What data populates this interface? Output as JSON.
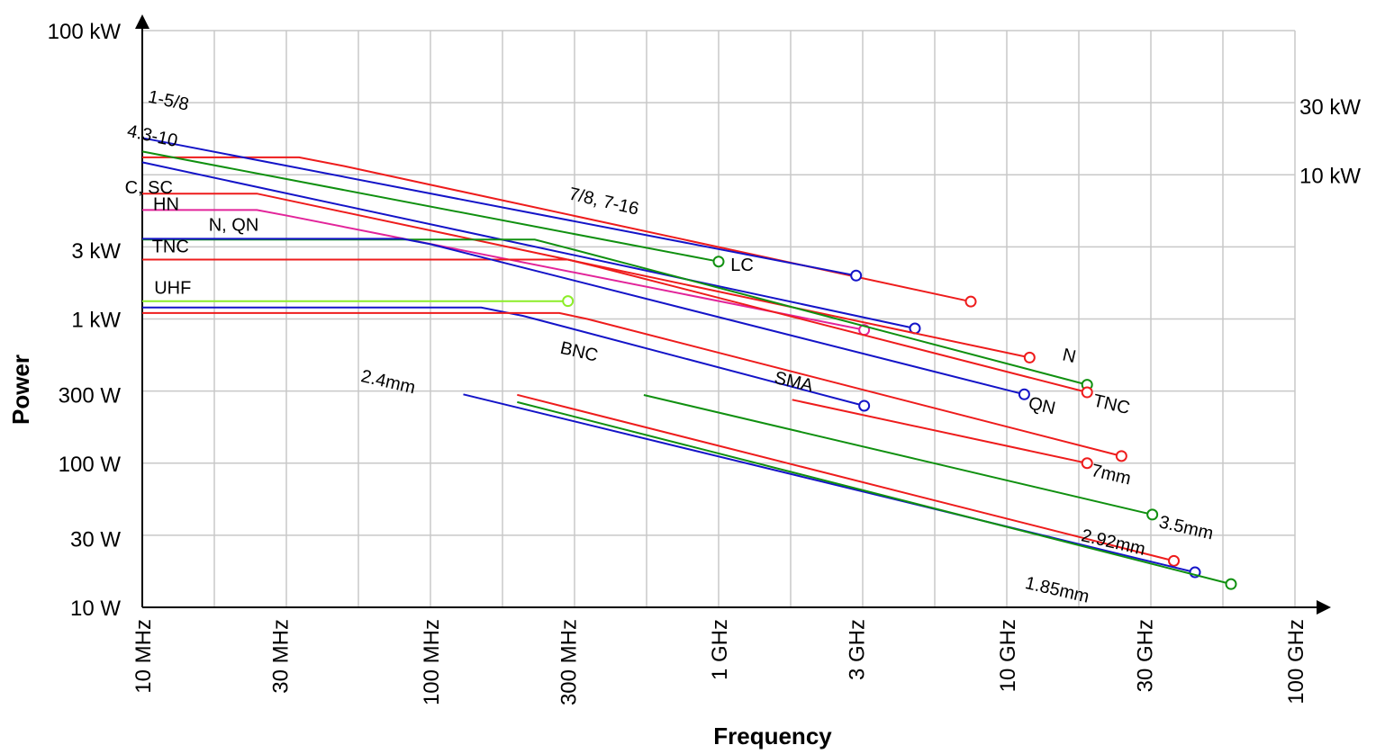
{
  "chart_data": {
    "type": "line",
    "xlabel": "Frequency",
    "ylabel": "Power",
    "x_scale": "log",
    "y_scale": "log",
    "xlim_hz": [
      10000000,
      100000000000
    ],
    "ylim_w": [
      10,
      100000
    ],
    "x_ticks": [
      {
        "value": 10000000,
        "label": "10 MHz"
      },
      {
        "value": 30000000,
        "label": "30 MHz"
      },
      {
        "value": 100000000,
        "label": "100 MHz"
      },
      {
        "value": 300000000,
        "label": "300 MHz"
      },
      {
        "value": 1000000000,
        "label": "1 GHz"
      },
      {
        "value": 3000000000,
        "label": "3 GHz"
      },
      {
        "value": 10000000000,
        "label": "10 GHz"
      },
      {
        "value": 30000000000,
        "label": "30 GHz"
      },
      {
        "value": 100000000000,
        "label": "100 GHz"
      }
    ],
    "y_ticks_left": [
      {
        "value": 100000,
        "label": "100 kW"
      },
      {
        "value": 3000,
        "label": "3 kW"
      },
      {
        "value": 1000,
        "label": "1 kW"
      },
      {
        "value": 300,
        "label": "300 W"
      },
      {
        "value": 100,
        "label": "100 W"
      },
      {
        "value": 30,
        "label": "30 W"
      },
      {
        "value": 10,
        "label": "10 W"
      }
    ],
    "y_ticks_right": [
      {
        "value": 30000,
        "label": "30 kW"
      },
      {
        "value": 10000,
        "label": "10 kW"
      }
    ],
    "grid": true,
    "colors": {
      "red": "#ee1c1c",
      "blue": "#1414c8",
      "green": "#109010",
      "pink": "#e2249a",
      "lime": "#8ced28",
      "grid": "#c8c8c8"
    },
    "series": [
      {
        "name": "7/8, 7-16",
        "color": "red",
        "marker_end": true,
        "points": [
          [
            10000000,
            13200
          ],
          [
            35000000,
            13200
          ],
          [
            50000000,
            11500
          ],
          [
            7500000000,
            1320
          ]
        ]
      },
      {
        "name": "1-5/8",
        "color": "blue",
        "marker_end": true,
        "points": [
          [
            10000000,
            18000
          ],
          [
            3000000000,
            2000
          ]
        ]
      },
      {
        "name": "LC",
        "color": "green",
        "marker_end": true,
        "points": [
          [
            10000000,
            14500
          ],
          [
            1000000000,
            2500
          ]
        ]
      },
      {
        "name": "4.3-10",
        "color": "blue",
        "marker_end": true,
        "points": [
          [
            10000000,
            12200
          ],
          [
            4800000000,
            860
          ]
        ]
      },
      {
        "name": "C, SC",
        "color": "red",
        "marker_end": true,
        "points": [
          [
            10000000,
            7400
          ],
          [
            25000000,
            7400
          ],
          [
            12000000000,
            540
          ]
        ]
      },
      {
        "name": "HN",
        "color": "pink",
        "marker_end": true,
        "points": [
          [
            10000000,
            5700
          ],
          [
            25000000,
            5700
          ],
          [
            32000000,
            5200
          ],
          [
            3200000000,
            840
          ]
        ]
      },
      {
        "name": "N",
        "color": "green",
        "marker_end": true,
        "points": [
          [
            10000000,
            3550
          ],
          [
            230000000,
            3550
          ],
          [
            300000000,
            3100
          ],
          [
            19000000000,
            350
          ]
        ]
      },
      {
        "name": "TNC",
        "color": "red",
        "marker_end": true,
        "points": [
          [
            10000000,
            2580
          ],
          [
            300000000,
            2580
          ],
          [
            380000000,
            2300
          ],
          [
            19000000000,
            310
          ]
        ]
      },
      {
        "name": "N, QN",
        "color": "blue",
        "marker_end": true,
        "points": [
          [
            10000000,
            3600
          ],
          [
            80000000,
            3600
          ],
          [
            100000000,
            3300
          ],
          [
            11500000000,
            300
          ]
        ]
      },
      {
        "name": "UHF",
        "color": "lime",
        "marker_end": true,
        "points": [
          [
            10000000,
            1330
          ],
          [
            300000000,
            1330
          ]
        ]
      },
      {
        "name": "BNC",
        "color": "blue",
        "marker_end": true,
        "points": [
          [
            10000000,
            1200
          ],
          [
            150000000,
            1200
          ],
          [
            210000000,
            1050
          ],
          [
            3200000000,
            250
          ]
        ]
      },
      {
        "name": "SMA",
        "color": "red",
        "marker_end": true,
        "points": [
          [
            10000000,
            1100
          ],
          [
            280000000,
            1100
          ],
          [
            350000000,
            1000
          ],
          [
            25000000000,
            112
          ]
        ]
      },
      {
        "name": "7mm",
        "color": "red",
        "marker_end": true,
        "points": [
          [
            1800000000,
            275
          ],
          [
            19000000000,
            100
          ]
        ]
      },
      {
        "name": "3.5mm",
        "color": "green",
        "marker_end": true,
        "points": [
          [
            550000000,
            297
          ],
          [
            32000000000,
            44
          ]
        ]
      },
      {
        "name": "2.92mm",
        "color": "red",
        "marker_end": true,
        "points": [
          [
            200000000,
            298
          ],
          [
            38000000000,
            21
          ]
        ]
      },
      {
        "name": "2.4mm",
        "color": "blue",
        "marker_end": true,
        "points": [
          [
            130000000,
            300
          ],
          [
            45000000000,
            17.5
          ]
        ]
      },
      {
        "name": "1.85mm",
        "color": "green",
        "marker_end": true,
        "points": [
          [
            200000000,
            265
          ],
          [
            60000000000,
            14.5
          ]
        ]
      }
    ],
    "annotations": [
      {
        "text": "1-5/8",
        "x": 10400000,
        "y": 32000,
        "rotate": 12
      },
      {
        "text": "4.3-10",
        "x": 8800000,
        "y": 18500,
        "rotate": 12
      },
      {
        "text": "C, SC",
        "x": 8700000,
        "y": 7400,
        "rotate": 0
      },
      {
        "text": "HN",
        "x": 10900000,
        "y": 5700,
        "rotate": 0
      },
      {
        "text": "N, QN",
        "x": 17000000,
        "y": 4100,
        "rotate": 0
      },
      {
        "text": "TNC",
        "x": 10800000,
        "y": 2900,
        "rotate": 0
      },
      {
        "text": "UHF",
        "x": 11000000,
        "y": 1500,
        "rotate": 0
      },
      {
        "text": "7/8, 7-16",
        "x": 300000000,
        "y": 6800,
        "rotate": 13
      },
      {
        "text": "LC",
        "x": 1100000000,
        "y": 2150,
        "rotate": 0
      },
      {
        "text": "BNC",
        "x": 280000000,
        "y": 580,
        "rotate": 13
      },
      {
        "text": "SMA",
        "x": 1550000000,
        "y": 360,
        "rotate": 13
      },
      {
        "text": "2.4mm",
        "x": 57000000,
        "y": 370,
        "rotate": 13
      },
      {
        "text": "N",
        "x": 15500000000,
        "y": 520,
        "rotate": 13
      },
      {
        "text": "TNC",
        "x": 19800000000,
        "y": 250,
        "rotate": 13
      },
      {
        "text": "QN",
        "x": 11800000000,
        "y": 240,
        "rotate": 13
      },
      {
        "text": "7mm",
        "x": 19500000000,
        "y": 82,
        "rotate": 13
      },
      {
        "text": "3.5mm",
        "x": 33500000000,
        "y": 36,
        "rotate": 13
      },
      {
        "text": "2.92mm",
        "x": 18000000000,
        "y": 29,
        "rotate": 13
      },
      {
        "text": "1.85mm",
        "x": 11500000000,
        "y": 13.6,
        "rotate": 13
      }
    ]
  }
}
